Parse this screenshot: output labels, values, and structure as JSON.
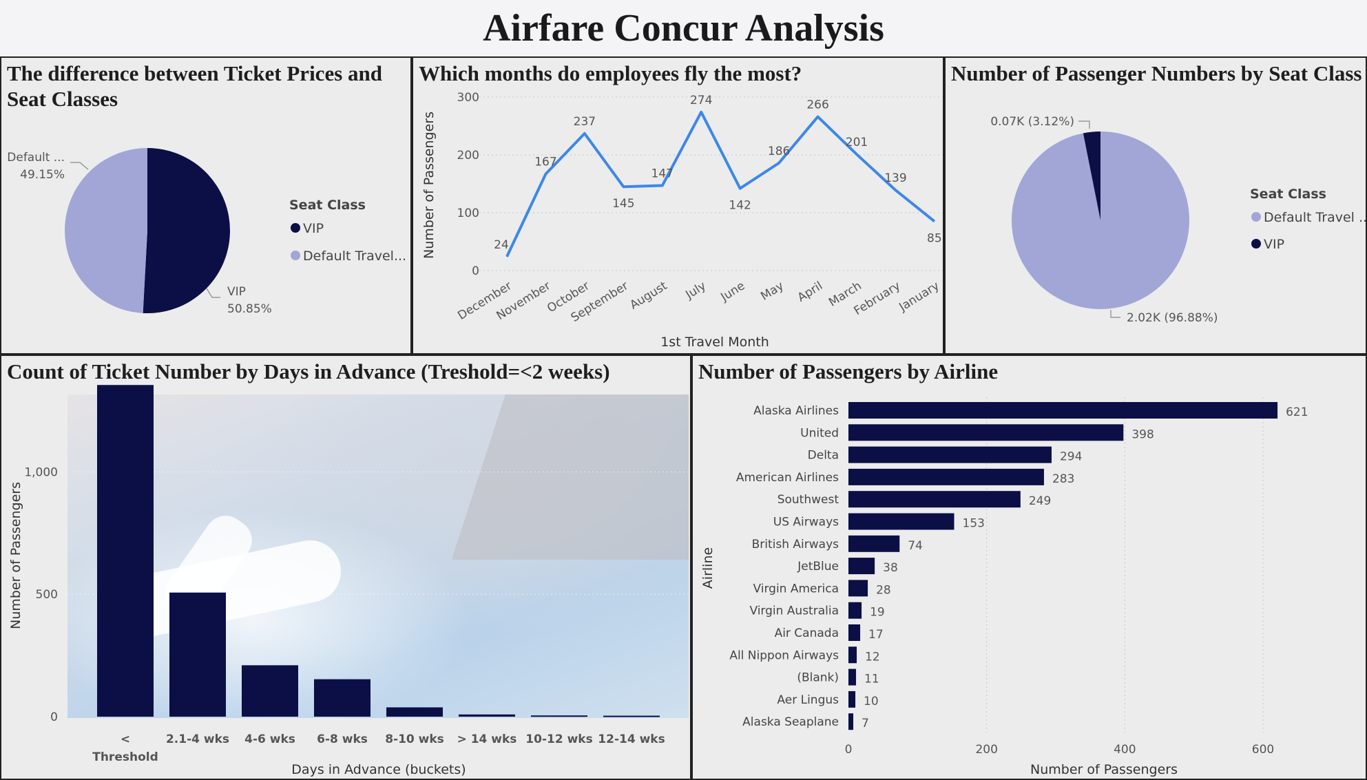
{
  "header": {
    "title": "Airfare Concur Analysis"
  },
  "colors": {
    "navy": "#0b0f45",
    "lavender": "#a1a6d6",
    "line_blue": "#3d87e8",
    "axis_text": "#555555"
  },
  "panel_pie1": {
    "title_line1": "The difference between Ticket Prices and",
    "title_line2": "Seat Classes"
  },
  "panel_line": {
    "title": "Which months do employees fly the most?"
  },
  "panel_pie2": {
    "title": "Number of Passenger Numbers by Seat Class"
  },
  "panel_days": {
    "title": "Count of Ticket Number by Days in Advance (Treshold=<2 weeks)"
  },
  "panel_airline": {
    "title": "Number of Passengers by Airline"
  },
  "chart_data": [
    {
      "id": "pie_seat_price",
      "type": "pie",
      "legend_title": "Seat Class",
      "legend": [
        "VIP",
        "Default Travel..."
      ],
      "slices": [
        {
          "label": "VIP",
          "value": 50.85,
          "label_text": "VIP",
          "pct_text": "50.85%",
          "color": "#0b0f45"
        },
        {
          "label": "Default Travel",
          "value": 49.15,
          "label_text": "Default ...",
          "pct_text": "49.15%",
          "color": "#a1a6d6"
        }
      ]
    },
    {
      "id": "line_months",
      "type": "line",
      "xlabel": "1st Travel Month",
      "ylabel": "Number of Passengers",
      "ylim": [
        0,
        300
      ],
      "yticks": [
        0,
        100,
        200,
        300
      ],
      "categories": [
        "December",
        "November",
        "October",
        "September",
        "August",
        "July",
        "June",
        "May",
        "April",
        "March",
        "February",
        "January"
      ],
      "values": [
        24,
        167,
        237,
        145,
        147,
        274,
        142,
        186,
        266,
        201,
        139,
        85
      ],
      "grid": true
    },
    {
      "id": "pie_seat_count",
      "type": "pie",
      "legend_title": "Seat Class",
      "legend": [
        "Default Travel ...",
        "VIP"
      ],
      "slices": [
        {
          "label": "Default Travel",
          "value": 96.88,
          "label_text": "2.02K (96.88%)",
          "color": "#a1a6d6"
        },
        {
          "label": "VIP",
          "value": 3.12,
          "label_text": "0.07K (3.12%)",
          "color": "#0b0f45"
        }
      ]
    },
    {
      "id": "bar_days_advance",
      "type": "bar",
      "xlabel": "Days in Advance (buckets)",
      "ylabel": "Number of Passengers",
      "ylim": [
        0,
        1350
      ],
      "yticks": [
        0,
        500,
        1000
      ],
      "ytick_labels": [
        "0",
        "500",
        "1,000"
      ],
      "categories": [
        "< Threshold",
        "2.1-4 wks",
        "4-6 wks",
        "6-8 wks",
        "8-10 wks",
        "> 14 wks",
        "10-12 wks",
        "12-14 wks"
      ],
      "category_lines": [
        [
          "<",
          "Threshold"
        ],
        [
          "2.1-4 wks"
        ],
        [
          "4-6 wks"
        ],
        [
          "6-8 wks"
        ],
        [
          "8-10 wks"
        ],
        [
          "> 14 wks"
        ],
        [
          "10-12 wks"
        ],
        [
          "12-14 wks"
        ]
      ],
      "values": [
        1355,
        507,
        210,
        153,
        38,
        9,
        5,
        4
      ]
    },
    {
      "id": "hbar_airline",
      "type": "bar",
      "orientation": "horizontal",
      "xlabel": "Number of Passengers",
      "ylabel": "Airline",
      "xlim": [
        0,
        660
      ],
      "xticks": [
        0,
        200,
        400,
        600
      ],
      "categories": [
        "Alaska Airlines",
        "United",
        "Delta",
        "American Airlines",
        "Southwest",
        "US Airways",
        "British Airways",
        "JetBlue",
        "Virgin America",
        "Virgin Australia",
        "Air Canada",
        "All Nippon Airways",
        "(Blank)",
        "Aer Lingus",
        "Alaska Seaplane"
      ],
      "values": [
        621,
        398,
        294,
        283,
        249,
        153,
        74,
        38,
        28,
        19,
        17,
        12,
        11,
        10,
        7
      ]
    }
  ]
}
